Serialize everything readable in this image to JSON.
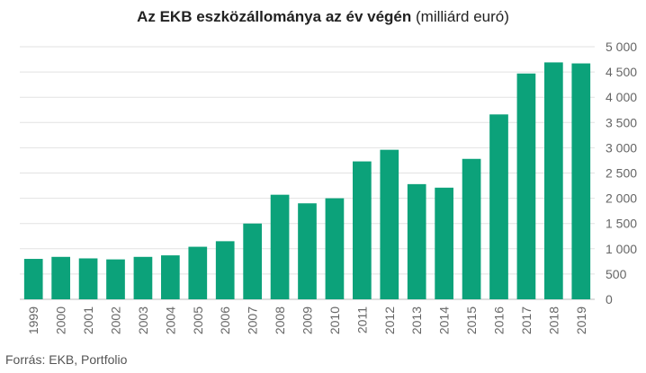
{
  "chart_data": {
    "type": "bar",
    "title": "Az EKB eszközállománya az év végén",
    "title_suffix": "(milliárd euró)",
    "categories": [
      "1999",
      "2000",
      "2001",
      "2002",
      "2003",
      "2004",
      "2005",
      "2006",
      "2007",
      "2008",
      "2009",
      "2010",
      "2011",
      "2012",
      "2013",
      "2014",
      "2015",
      "2016",
      "2017",
      "2018",
      "2019"
    ],
    "values": [
      800,
      840,
      810,
      790,
      840,
      870,
      1040,
      1150,
      1500,
      2070,
      1900,
      2000,
      2730,
      2960,
      2280,
      2210,
      2780,
      3660,
      4470,
      4690,
      4670
    ],
    "ylim": [
      0,
      5000
    ],
    "yticks": [
      0,
      500,
      1000,
      1500,
      2000,
      2500,
      3000,
      3500,
      4000,
      4500,
      5000
    ],
    "ytick_labels": [
      "0",
      "500",
      "1 000",
      "1 500",
      "2 000",
      "2 500",
      "3 000",
      "3 500",
      "4 000",
      "4 500",
      "5 000"
    ],
    "y_axis_side": "right",
    "grid": true,
    "bar_color": "#0ca27a",
    "xlabel": "",
    "ylabel": ""
  },
  "source": "Forrás: EKB, Portfolio"
}
